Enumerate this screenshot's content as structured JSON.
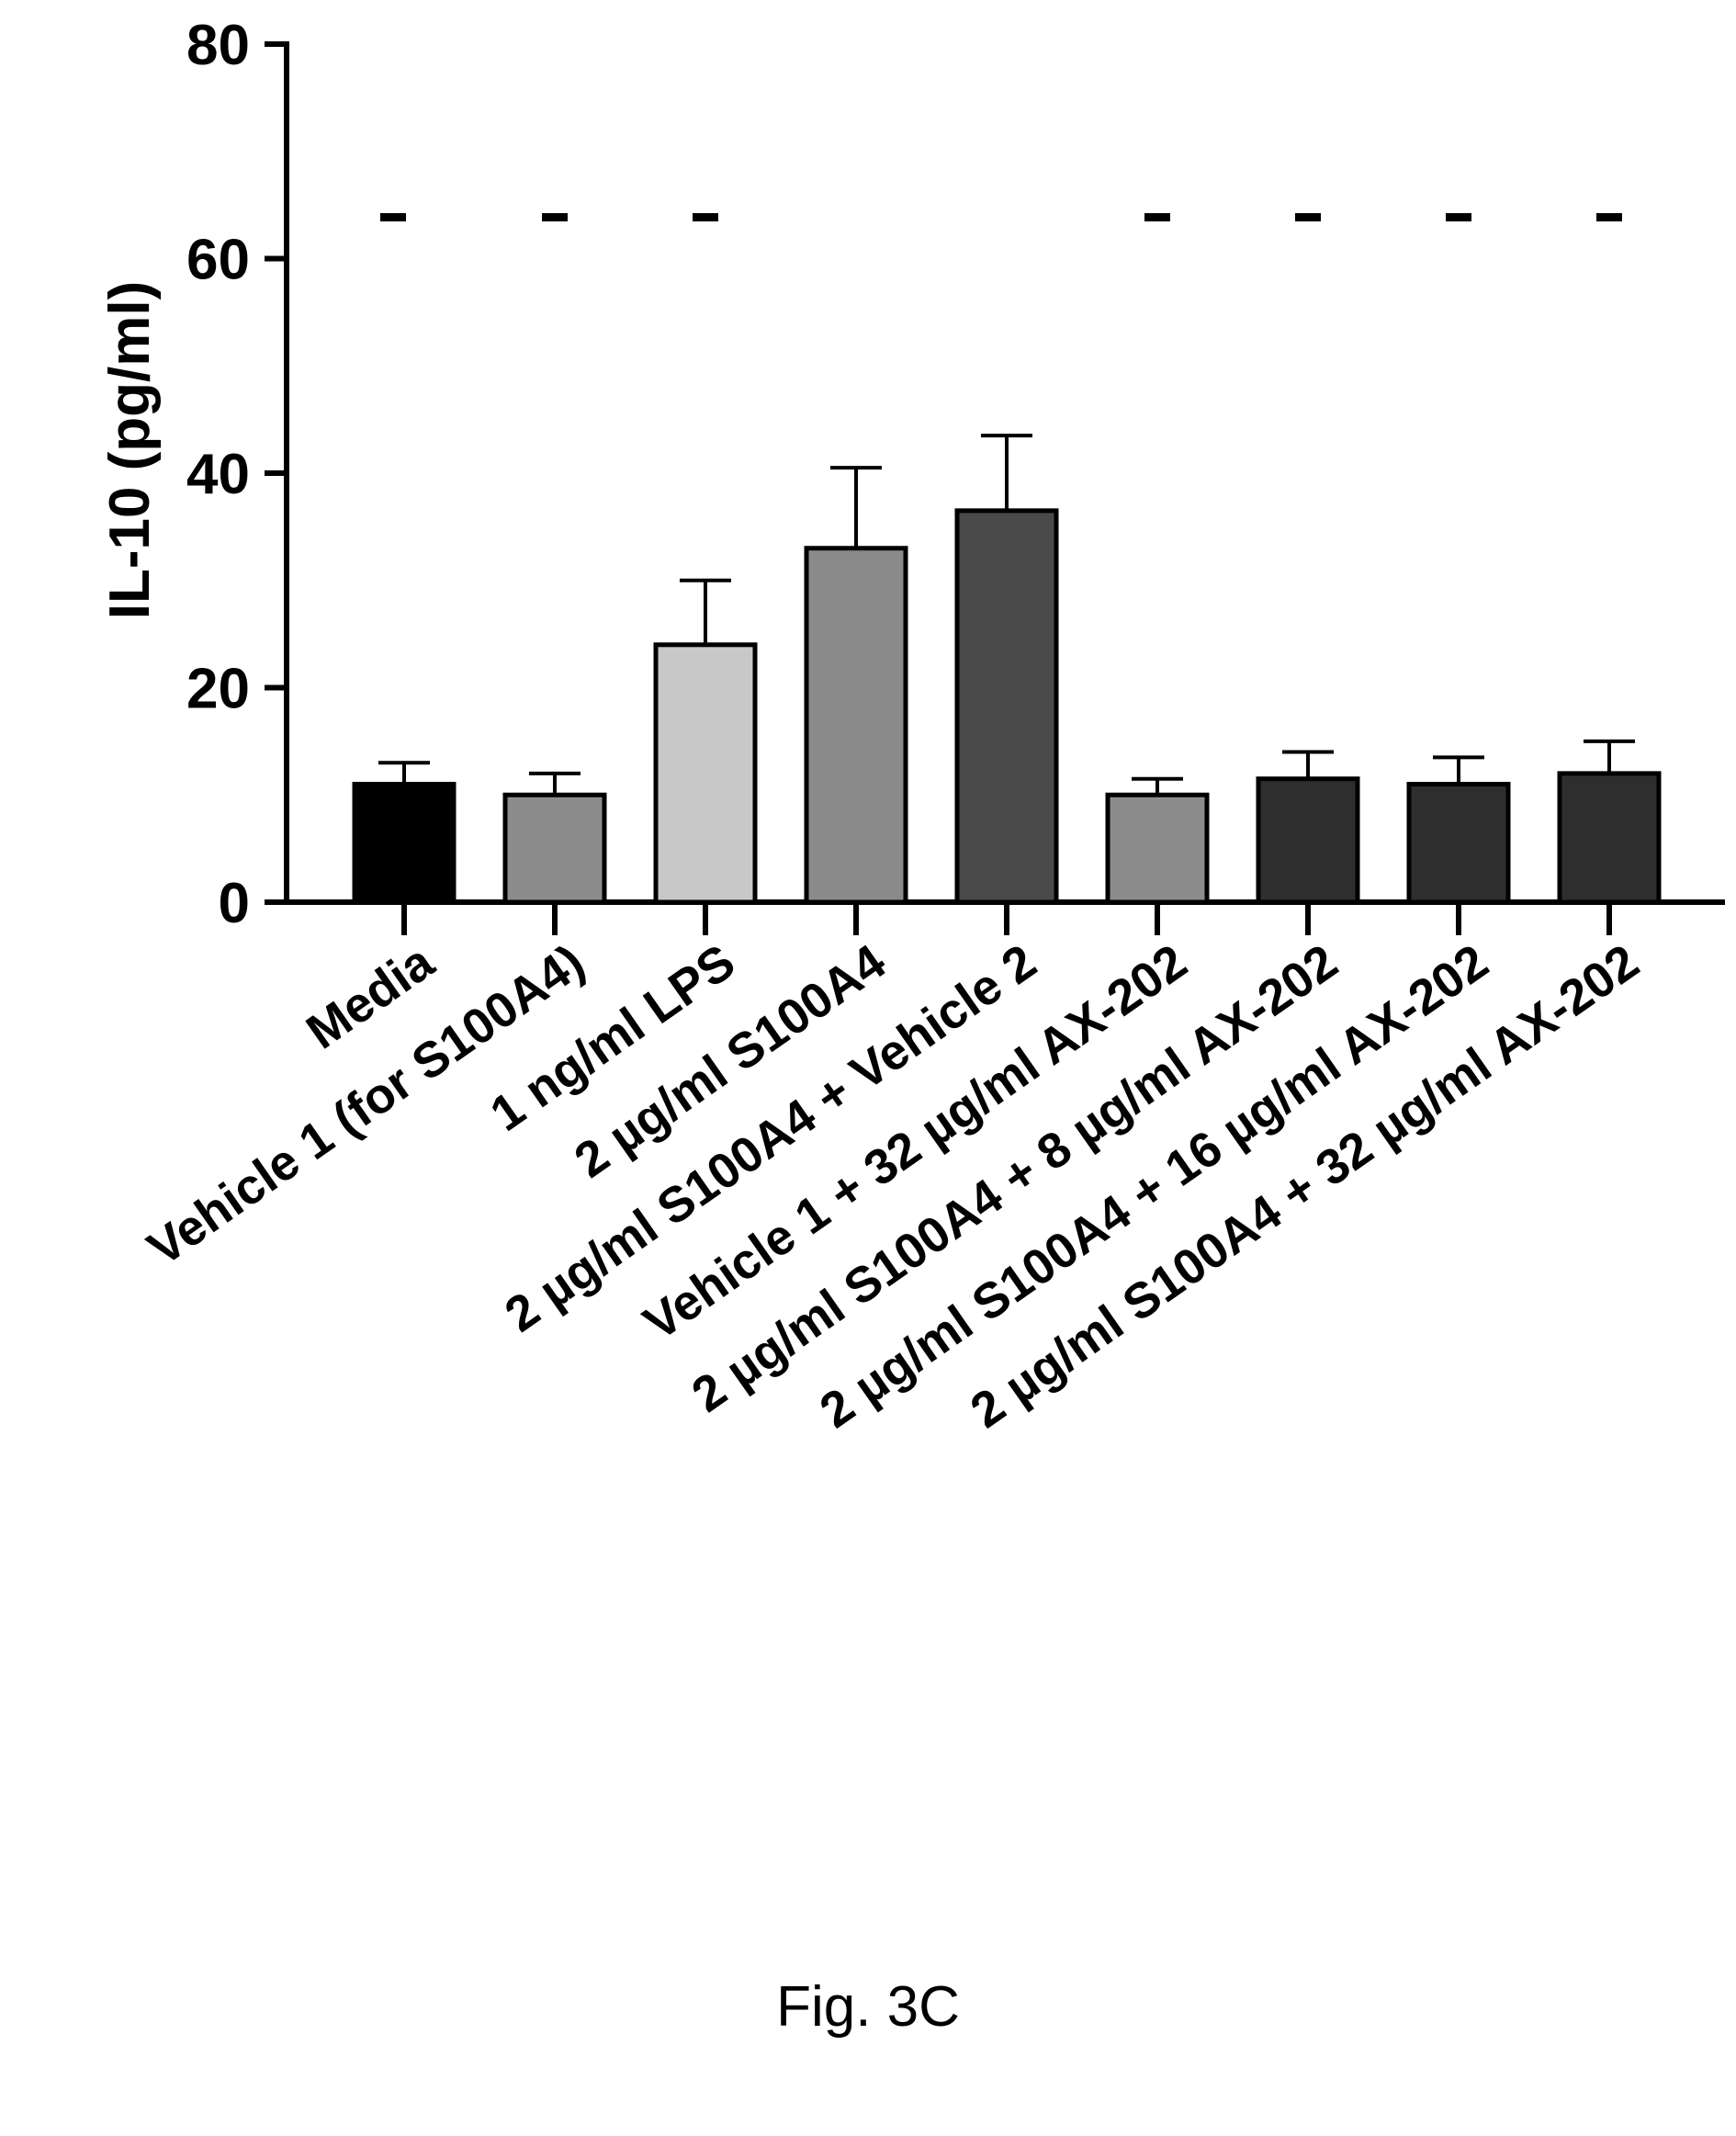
{
  "chart_data": {
    "type": "bar",
    "ylabel": "IL-10 (pg/ml)",
    "xlabel": "",
    "ylim": [
      0,
      80
    ],
    "yticks": [
      0,
      20,
      40,
      60,
      80
    ],
    "categories": [
      "Media",
      "Vehicle 1 (for S100A4)",
      "1 ng/ml LPS",
      "2 µg/ml S100A4",
      "2 µg/ml S100A4 + Vehicle 2",
      "Vehicle 1 + 32 µg/ml AX-202",
      "2 µg/ml S100A4 + 8 µg/ml AX-202",
      "2 µg/ml S100A4 + 16 µg/ml AX-202",
      "2 µg/ml S100A4 + 32 µg/ml AX-202"
    ],
    "values": [
      11,
      10,
      24,
      33,
      36.5,
      10,
      11.5,
      11,
      12
    ],
    "errors": [
      2,
      2,
      6,
      7.5,
      7,
      1.5,
      2.5,
      2.5,
      3
    ],
    "significance_marks": [
      "-",
      "-",
      "-",
      "",
      "",
      "-",
      "-",
      "-",
      "-"
    ],
    "bar_colors": [
      "#000000",
      "#8c8c8c",
      "#c8c8c8",
      "#8a8a8a",
      "#4a4a4a",
      "#8c8c8c",
      "#2e2e2e",
      "#2e2e2e",
      "#2e2e2e"
    ],
    "grid": false,
    "legend": "none"
  },
  "figure_caption": "Fig. 3C"
}
